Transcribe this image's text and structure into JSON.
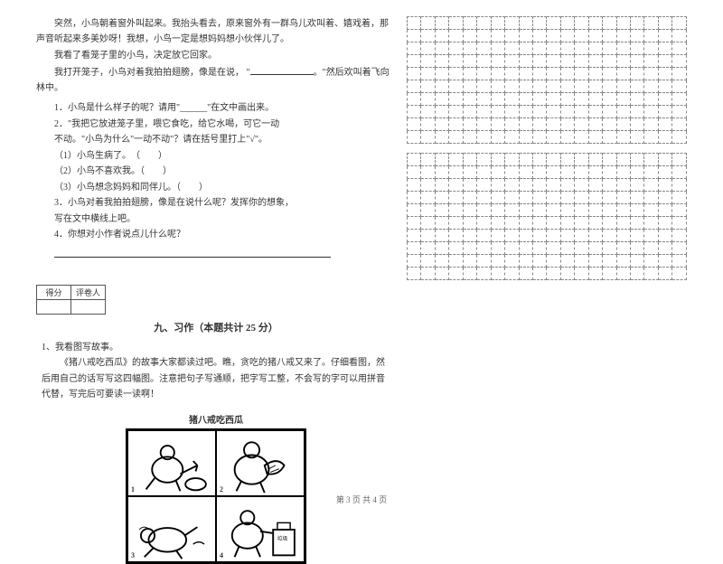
{
  "passage": {
    "p1": "突然，小鸟朝着窗外叫起来。我抬头看去，原来窗外有一群鸟儿欢叫着、嬉戏着，那声音听起来多美妙呀！我想，小鸟一定是想妈妈想小伙伴儿了。",
    "p2": "我看了看笼子里的小鸟，决定放它回家。",
    "p3_pre": "我打开笼子，小鸟对着我拍拍翅膀，像是在说，",
    "p3_post": "然后欢叫着飞向林中。"
  },
  "questions": {
    "q1": "1．小鸟是什么样子的呢？请用\"______\"在文中画出来。",
    "q2a": "2．\"我把它放进笼子里，喂它食吃，给它水喝，可它一动",
    "q2b": "不动。\"小鸟为什么\"一动不动\"？请在括号里打上\"√\"。",
    "opt1": "（1）小鸟生病了。　（　　）",
    "opt2": "（2）小鸟不喜欢我。（　　）",
    "opt3": "（3）小鸟想念妈妈和同伴儿。（　　）",
    "q3a": "3．小鸟对着我拍拍翅膀，像是在说什么呢？发挥你的想象，",
    "q3b": "写在文中横线上吧。",
    "q4": "4．你想对小作者说点儿什么呢？"
  },
  "score": {
    "col1": "得分",
    "col2": "评卷人"
  },
  "section9": {
    "title": "九、习作（本题共计 25 分）",
    "lead": "1、我看图写故事。",
    "body": "《猪八戒吃西瓜》的故事大家都读过吧。瞧，贪吃的猪八戒又来了。仔细看图，然后用自己的话写写这四幅图。注意把句子写通顺，把字写工整，不会写的字可以用拼音代替，写完后可要读一读啊！",
    "comic_title": "猪八戒吃西瓜"
  },
  "footer": "第 3 页  共 4 页",
  "grid": {
    "rows": 10,
    "cols": 20
  }
}
